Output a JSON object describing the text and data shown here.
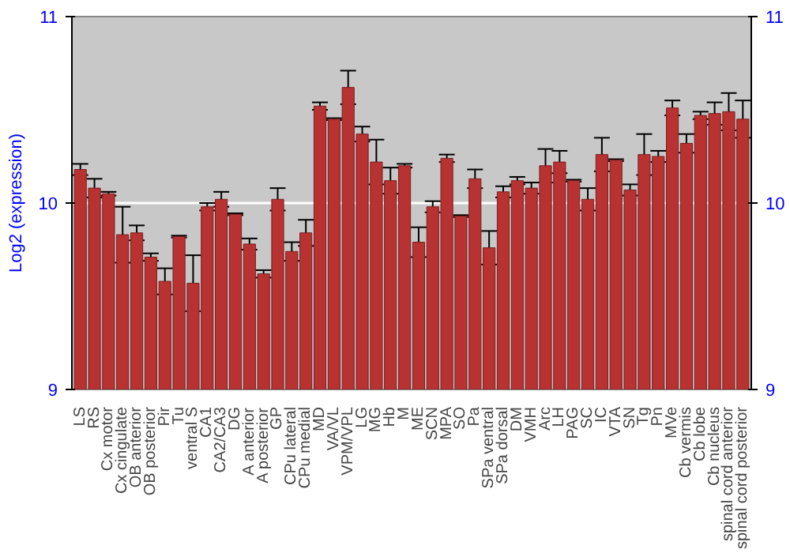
{
  "chart_data": {
    "type": "bar",
    "ylabel": "Log2 (expression)",
    "categories": [
      "LS",
      "RS",
      "Cx motor",
      "Cx cingulate",
      "OB anterior",
      "OB posterior",
      "Pir",
      "Tu",
      "ventral S",
      "CA1",
      "CA2/CA3",
      "DG",
      "A anterior",
      "A posterior",
      "GP",
      "CPu lateral",
      "CPu medial",
      "MD",
      "VA/VL",
      "VPM/VPL",
      "LG",
      "MG",
      "Hb",
      "M",
      "ME",
      "SCN",
      "MPA",
      "SO",
      "Pa",
      "SPa ventral",
      "SPa dorsal",
      "DM",
      "VMH",
      "Arc",
      "LH",
      "PAG",
      "SC",
      "IC",
      "VTA",
      "SN",
      "Tg",
      "Pn",
      "MVe",
      "Cb vermis",
      "Cb lobe",
      "Cb nucleus",
      "spinal cord anterior",
      "spinal cord posterior"
    ],
    "values": [
      10.18,
      10.08,
      10.05,
      9.83,
      9.84,
      9.71,
      9.58,
      9.82,
      9.57,
      9.98,
      10.02,
      9.94,
      9.78,
      9.62,
      10.02,
      9.74,
      9.84,
      10.52,
      10.45,
      10.62,
      10.37,
      10.22,
      10.12,
      10.2,
      9.79,
      9.98,
      10.24,
      9.93,
      10.13,
      9.76,
      10.06,
      10.12,
      10.08,
      10.2,
      10.22,
      10.12,
      10.02,
      10.26,
      10.23,
      10.07,
      10.26,
      10.25,
      10.51,
      10.32,
      10.47,
      10.48,
      10.49,
      10.45
    ],
    "errors": [
      0.03,
      0.05,
      0.01,
      0.15,
      0.04,
      0.02,
      0.07,
      0.005,
      0.15,
      0.02,
      0.04,
      0.005,
      0.03,
      0.02,
      0.06,
      0.05,
      0.07,
      0.02,
      0.005,
      0.09,
      0.04,
      0.12,
      0.07,
      0.01,
      0.08,
      0.03,
      0.02,
      0.005,
      0.05,
      0.09,
      0.03,
      0.02,
      0.03,
      0.09,
      0.06,
      0.005,
      0.06,
      0.09,
      0.005,
      0.03,
      0.11,
      0.03,
      0.04,
      0.05,
      0.02,
      0.06,
      0.1,
      0.1
    ],
    "color": "#b83232",
    "ylim": [
      9,
      11
    ],
    "yticks": [
      9,
      10,
      11
    ],
    "y2lim": [
      9,
      11
    ],
    "y2ticks": [
      9,
      10,
      11
    ],
    "grid": "y"
  }
}
